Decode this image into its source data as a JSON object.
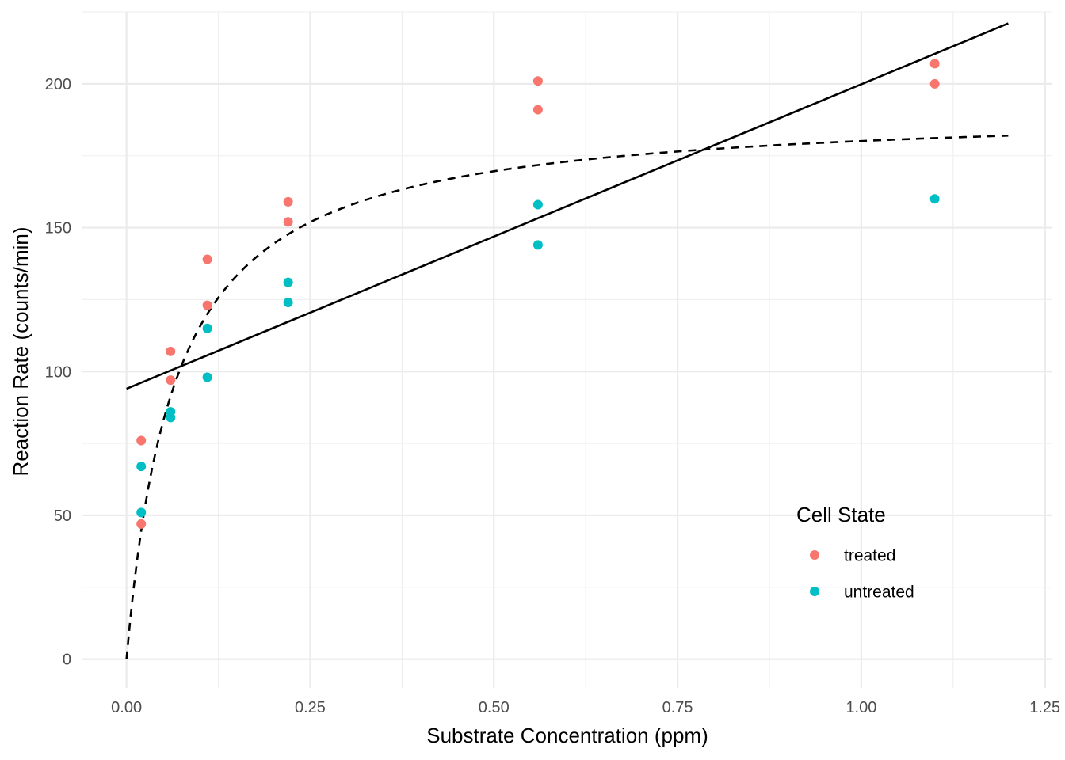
{
  "chart_data": {
    "type": "scatter",
    "xlabel": "Substrate Concentration (ppm)",
    "ylabel": "Reaction Rate (counts/min)",
    "xlim": [
      -0.06,
      1.26
    ],
    "ylim": [
      -10,
      225
    ],
    "x_ticks": [
      0.0,
      0.25,
      0.5,
      0.75,
      1.0,
      1.25
    ],
    "x_tick_labels": [
      "0.00",
      "0.25",
      "0.50",
      "0.75",
      "1.00",
      "1.25"
    ],
    "y_ticks": [
      0,
      50,
      100,
      150,
      200
    ],
    "y_tick_labels": [
      "0",
      "50",
      "100",
      "150",
      "200"
    ],
    "grid": true,
    "legend": {
      "title": "Cell State",
      "placement": "bottom-right",
      "entries": [
        {
          "label": "treated",
          "color": "#F8766D"
        },
        {
          "label": "untreated",
          "color": "#00BFC4"
        }
      ]
    },
    "series": [
      {
        "name": "treated",
        "color": "#F8766D",
        "points": [
          [
            0.02,
            76
          ],
          [
            0.02,
            47
          ],
          [
            0.06,
            97
          ],
          [
            0.06,
            107
          ],
          [
            0.11,
            123
          ],
          [
            0.11,
            139
          ],
          [
            0.22,
            159
          ],
          [
            0.22,
            152
          ],
          [
            0.56,
            191
          ],
          [
            0.56,
            201
          ],
          [
            1.1,
            207
          ],
          [
            1.1,
            200
          ]
        ]
      },
      {
        "name": "untreated",
        "color": "#00BFC4",
        "points": [
          [
            0.02,
            67
          ],
          [
            0.02,
            51
          ],
          [
            0.06,
            84
          ],
          [
            0.06,
            86
          ],
          [
            0.11,
            98
          ],
          [
            0.11,
            115
          ],
          [
            0.22,
            131
          ],
          [
            0.22,
            124
          ],
          [
            0.56,
            144
          ],
          [
            0.56,
            158
          ],
          [
            1.1,
            160
          ]
        ]
      }
    ],
    "linear_fit": {
      "style": "solid",
      "points": [
        [
          0.0,
          94
        ],
        [
          1.2,
          221
        ]
      ]
    },
    "michaelis_menten_fit": {
      "style": "dashed",
      "vmax": 192,
      "km": 0.066,
      "x_range": [
        0.0,
        1.2
      ]
    }
  }
}
